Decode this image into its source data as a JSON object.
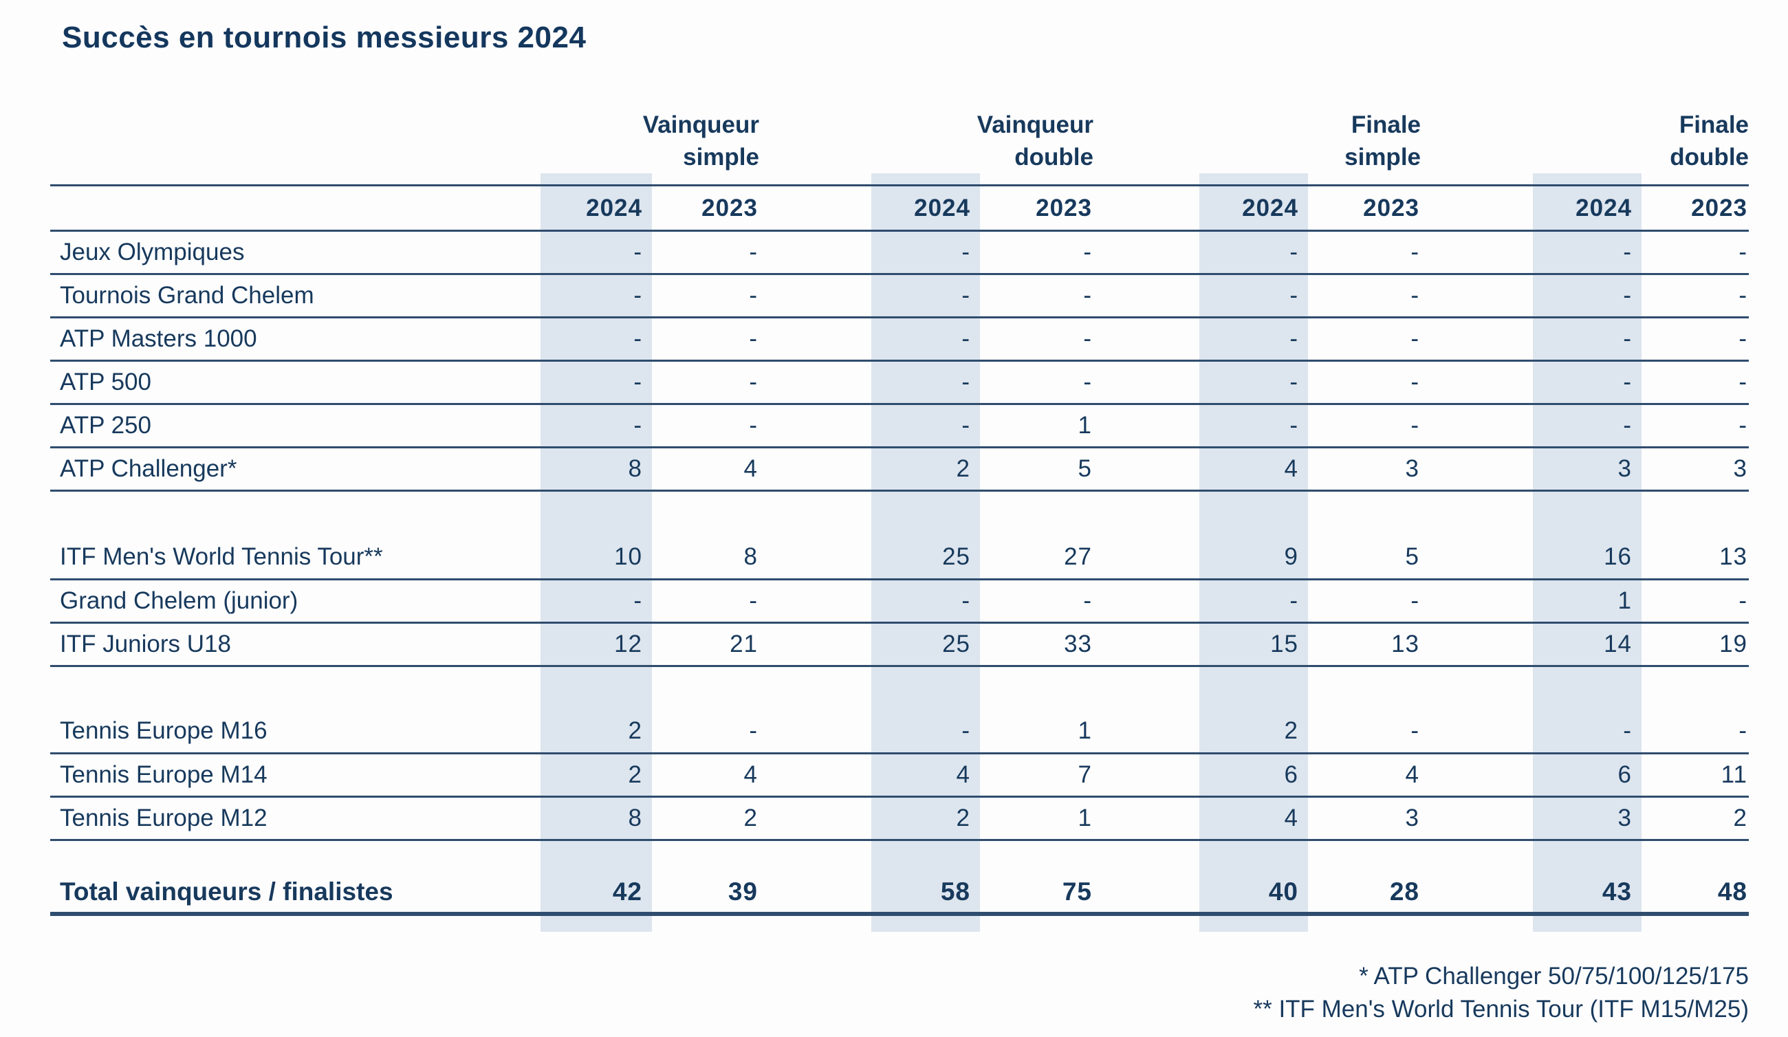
{
  "title": "Succès en tournois messieurs 2024",
  "colors": {
    "navy_text": "#17395c",
    "rule_line": "#2f4d6e",
    "column_band": "#dde5ee",
    "background": "#fdfdfe"
  },
  "table": {
    "group_headers": [
      "Vainqueur\nsimple",
      "Vainqueur\ndouble",
      "Finale\nsimple",
      "Finale\ndouble"
    ],
    "year_headers": [
      "2024",
      "2023",
      "2024",
      "2023",
      "2024",
      "2023",
      "2024",
      "2023"
    ],
    "rows": [
      {
        "type": "data",
        "label": "Jeux Olympiques",
        "values": [
          "-",
          "-",
          "-",
          "-",
          "-",
          "-",
          "-",
          "-"
        ]
      },
      {
        "type": "data",
        "label": "Tournois Grand Chelem",
        "values": [
          "-",
          "-",
          "-",
          "-",
          "-",
          "-",
          "-",
          "-"
        ]
      },
      {
        "type": "data",
        "label": "ATP Masters 1000",
        "values": [
          "-",
          "-",
          "-",
          "-",
          "-",
          "-",
          "-",
          "-"
        ]
      },
      {
        "type": "data",
        "label": "ATP 500",
        "values": [
          "-",
          "-",
          "-",
          "-",
          "-",
          "-",
          "-",
          "-"
        ]
      },
      {
        "type": "data",
        "label": "ATP 250",
        "values": [
          "-",
          "-",
          "-",
          "1",
          "-",
          "-",
          "-",
          "-"
        ]
      },
      {
        "type": "data",
        "label": "ATP Challenger*",
        "values": [
          "8",
          "4",
          "2",
          "5",
          "4",
          "3",
          "3",
          "3"
        ]
      },
      {
        "type": "spacer"
      },
      {
        "type": "data",
        "label": "ITF Men's World Tennis Tour**",
        "values": [
          "10",
          "8",
          "25",
          "27",
          "9",
          "5",
          "16",
          "13"
        ]
      },
      {
        "type": "data",
        "label": "Grand Chelem (junior)",
        "values": [
          "-",
          "-",
          "-",
          "-",
          "-",
          "-",
          "1",
          "-"
        ]
      },
      {
        "type": "data",
        "label": "ITF Juniors U18",
        "values": [
          "12",
          "21",
          "25",
          "33",
          "15",
          "13",
          "14",
          "19"
        ]
      },
      {
        "type": "spacer"
      },
      {
        "type": "data",
        "label": "Tennis Europe M16",
        "values": [
          "2",
          "-",
          "-",
          "1",
          "2",
          "-",
          "-",
          "-"
        ]
      },
      {
        "type": "data",
        "label": "Tennis Europe M14",
        "values": [
          "2",
          "4",
          "4",
          "7",
          "6",
          "4",
          "6",
          "11"
        ]
      },
      {
        "type": "data",
        "label": "Tennis Europe M12",
        "values": [
          "8",
          "2",
          "2",
          "1",
          "4",
          "3",
          "3",
          "2"
        ]
      },
      {
        "type": "spacer"
      },
      {
        "type": "total",
        "label": "Total vainqueurs / finalistes",
        "values": [
          "42",
          "39",
          "58",
          "75",
          "40",
          "28",
          "43",
          "48"
        ]
      }
    ]
  },
  "footnotes": [
    "* ATP Challenger 50/75/100/125/175",
    "** ITF Men's World Tennis Tour (ITF M15/M25)"
  ]
}
